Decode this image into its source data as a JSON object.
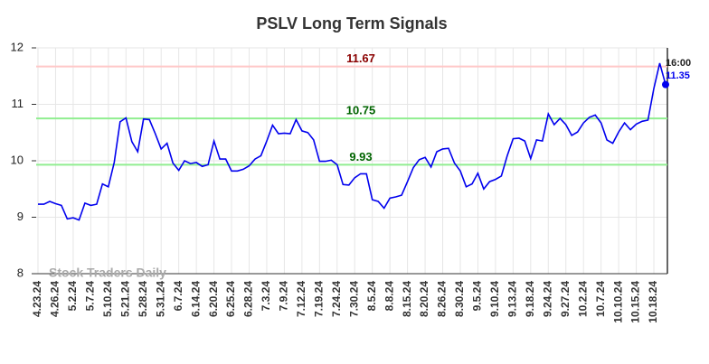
{
  "chart_data": {
    "type": "line",
    "title": "PSLV Long Term Signals",
    "watermark": "Stock Traders Daily",
    "categories": [
      "4.23.24",
      null,
      null,
      "4.26.24",
      null,
      null,
      "5.2.24",
      null,
      null,
      "5.7.24",
      null,
      null,
      "5.10.24",
      null,
      null,
      "5.21.24",
      null,
      null,
      "5.28.24",
      null,
      null,
      "5.31.24",
      null,
      null,
      "6.7.24",
      null,
      null,
      "6.14.24",
      null,
      null,
      "6.20.24",
      null,
      null,
      "6.25.24",
      null,
      null,
      "6.28.24",
      null,
      null,
      "7.3.24",
      null,
      null,
      "7.9.24",
      null,
      null,
      "7.12.24",
      null,
      null,
      "7.19.24",
      null,
      null,
      "7.24.24",
      null,
      null,
      "7.30.24",
      null,
      null,
      "8.5.24",
      null,
      null,
      "8.8.24",
      null,
      null,
      "8.15.24",
      null,
      null,
      "8.20.24",
      null,
      null,
      "8.26.24",
      null,
      null,
      "8.30.24",
      null,
      null,
      "9.5.24",
      null,
      null,
      "9.10.24",
      null,
      null,
      "9.13.24",
      null,
      null,
      "9.18.24",
      null,
      null,
      "9.24.24",
      null,
      null,
      "9.27.24",
      null,
      null,
      "10.2.24",
      null,
      null,
      "10.7.24",
      null,
      null,
      "10.10.24",
      null,
      null,
      "10.15.24",
      null,
      null,
      "10.18.24",
      null,
      null
    ],
    "values": [
      9.23,
      9.23,
      9.28,
      9.24,
      9.21,
      8.97,
      8.99,
      8.95,
      9.25,
      9.21,
      9.23,
      9.59,
      9.54,
      9.97,
      10.69,
      10.76,
      10.34,
      10.16,
      10.74,
      10.73,
      10.48,
      10.21,
      10.31,
      9.96,
      9.83,
      10.0,
      9.95,
      9.97,
      9.9,
      9.93,
      10.35,
      10.03,
      10.03,
      9.82,
      9.82,
      9.85,
      9.91,
      10.03,
      10.09,
      10.35,
      10.63,
      10.48,
      10.49,
      10.48,
      10.73,
      10.53,
      10.5,
      10.37,
      9.99,
      9.99,
      10.01,
      9.93,
      9.58,
      9.57,
      9.7,
      9.77,
      9.77,
      9.31,
      9.28,
      9.16,
      9.34,
      9.36,
      9.39,
      9.63,
      9.88,
      10.02,
      10.06,
      9.89,
      10.16,
      10.21,
      10.22,
      9.96,
      9.82,
      9.54,
      9.59,
      9.78,
      9.5,
      9.63,
      9.67,
      9.73,
      10.09,
      10.39,
      10.4,
      10.35,
      10.04,
      10.37,
      10.35,
      10.83,
      10.64,
      10.75,
      10.64,
      10.45,
      10.51,
      10.67,
      10.77,
      10.81,
      10.67,
      10.37,
      10.31,
      10.51,
      10.67,
      10.55,
      10.65,
      10.7,
      10.72,
      11.28,
      11.73,
      11.35
    ],
    "color": "#0000ee",
    "last_point": {
      "time": "16:00"
    },
    "hlines": [
      {
        "value": 11.67,
        "color": "#ffc8c8",
        "label_color": "#8b0000"
      },
      {
        "value": 10.75,
        "color": "#90ee90",
        "label_color": "#006400"
      },
      {
        "value": 9.93,
        "color": "#90ee90",
        "label_color": "#006400"
      }
    ],
    "ylim": [
      8,
      12
    ],
    "yticks": [
      8,
      9,
      10,
      11,
      12
    ],
    "grid": true
  }
}
